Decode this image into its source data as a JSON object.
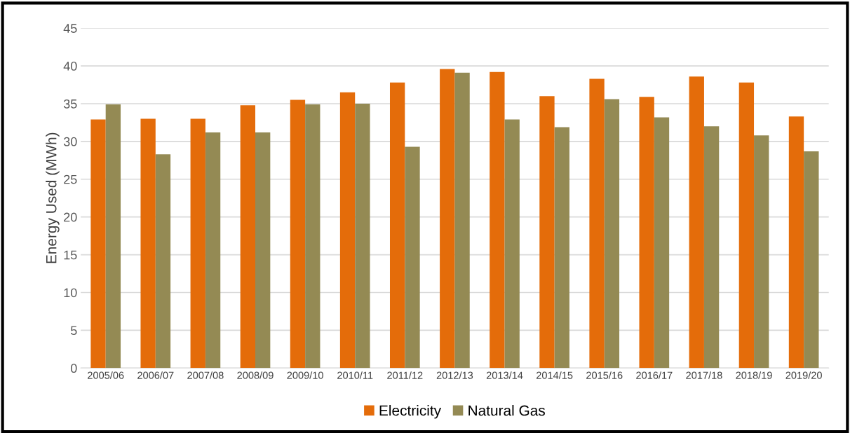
{
  "chart_data": {
    "type": "bar",
    "ylabel": "Energy Used (MWh)",
    "categories": [
      "2005/06",
      "2006/07",
      "2007/08",
      "2008/09",
      "2009/10",
      "2010/11",
      "2011/12",
      "2012/13",
      "2013/14",
      "2014/15",
      "2015/16",
      "2016/17",
      "2017/18",
      "2018/19",
      "2019/20"
    ],
    "series": [
      {
        "name": "Electricity",
        "color": "#e46c0a",
        "values": [
          32.9,
          33.0,
          33.0,
          34.8,
          35.5,
          36.5,
          37.8,
          39.6,
          39.2,
          36.0,
          38.3,
          35.9,
          38.6,
          37.8,
          33.3
        ]
      },
      {
        "name": "Natural Gas",
        "color": "#948a54",
        "values": [
          34.9,
          28.3,
          31.2,
          31.2,
          34.9,
          35.0,
          29.3,
          39.1,
          32.9,
          31.9,
          35.6,
          33.2,
          32.0,
          30.8,
          28.7
        ]
      }
    ],
    "ylim": [
      0,
      45
    ],
    "yticks": [
      0,
      5,
      10,
      15,
      20,
      25,
      30,
      35,
      40,
      45
    ],
    "grid": "y",
    "legend": "bottom"
  }
}
